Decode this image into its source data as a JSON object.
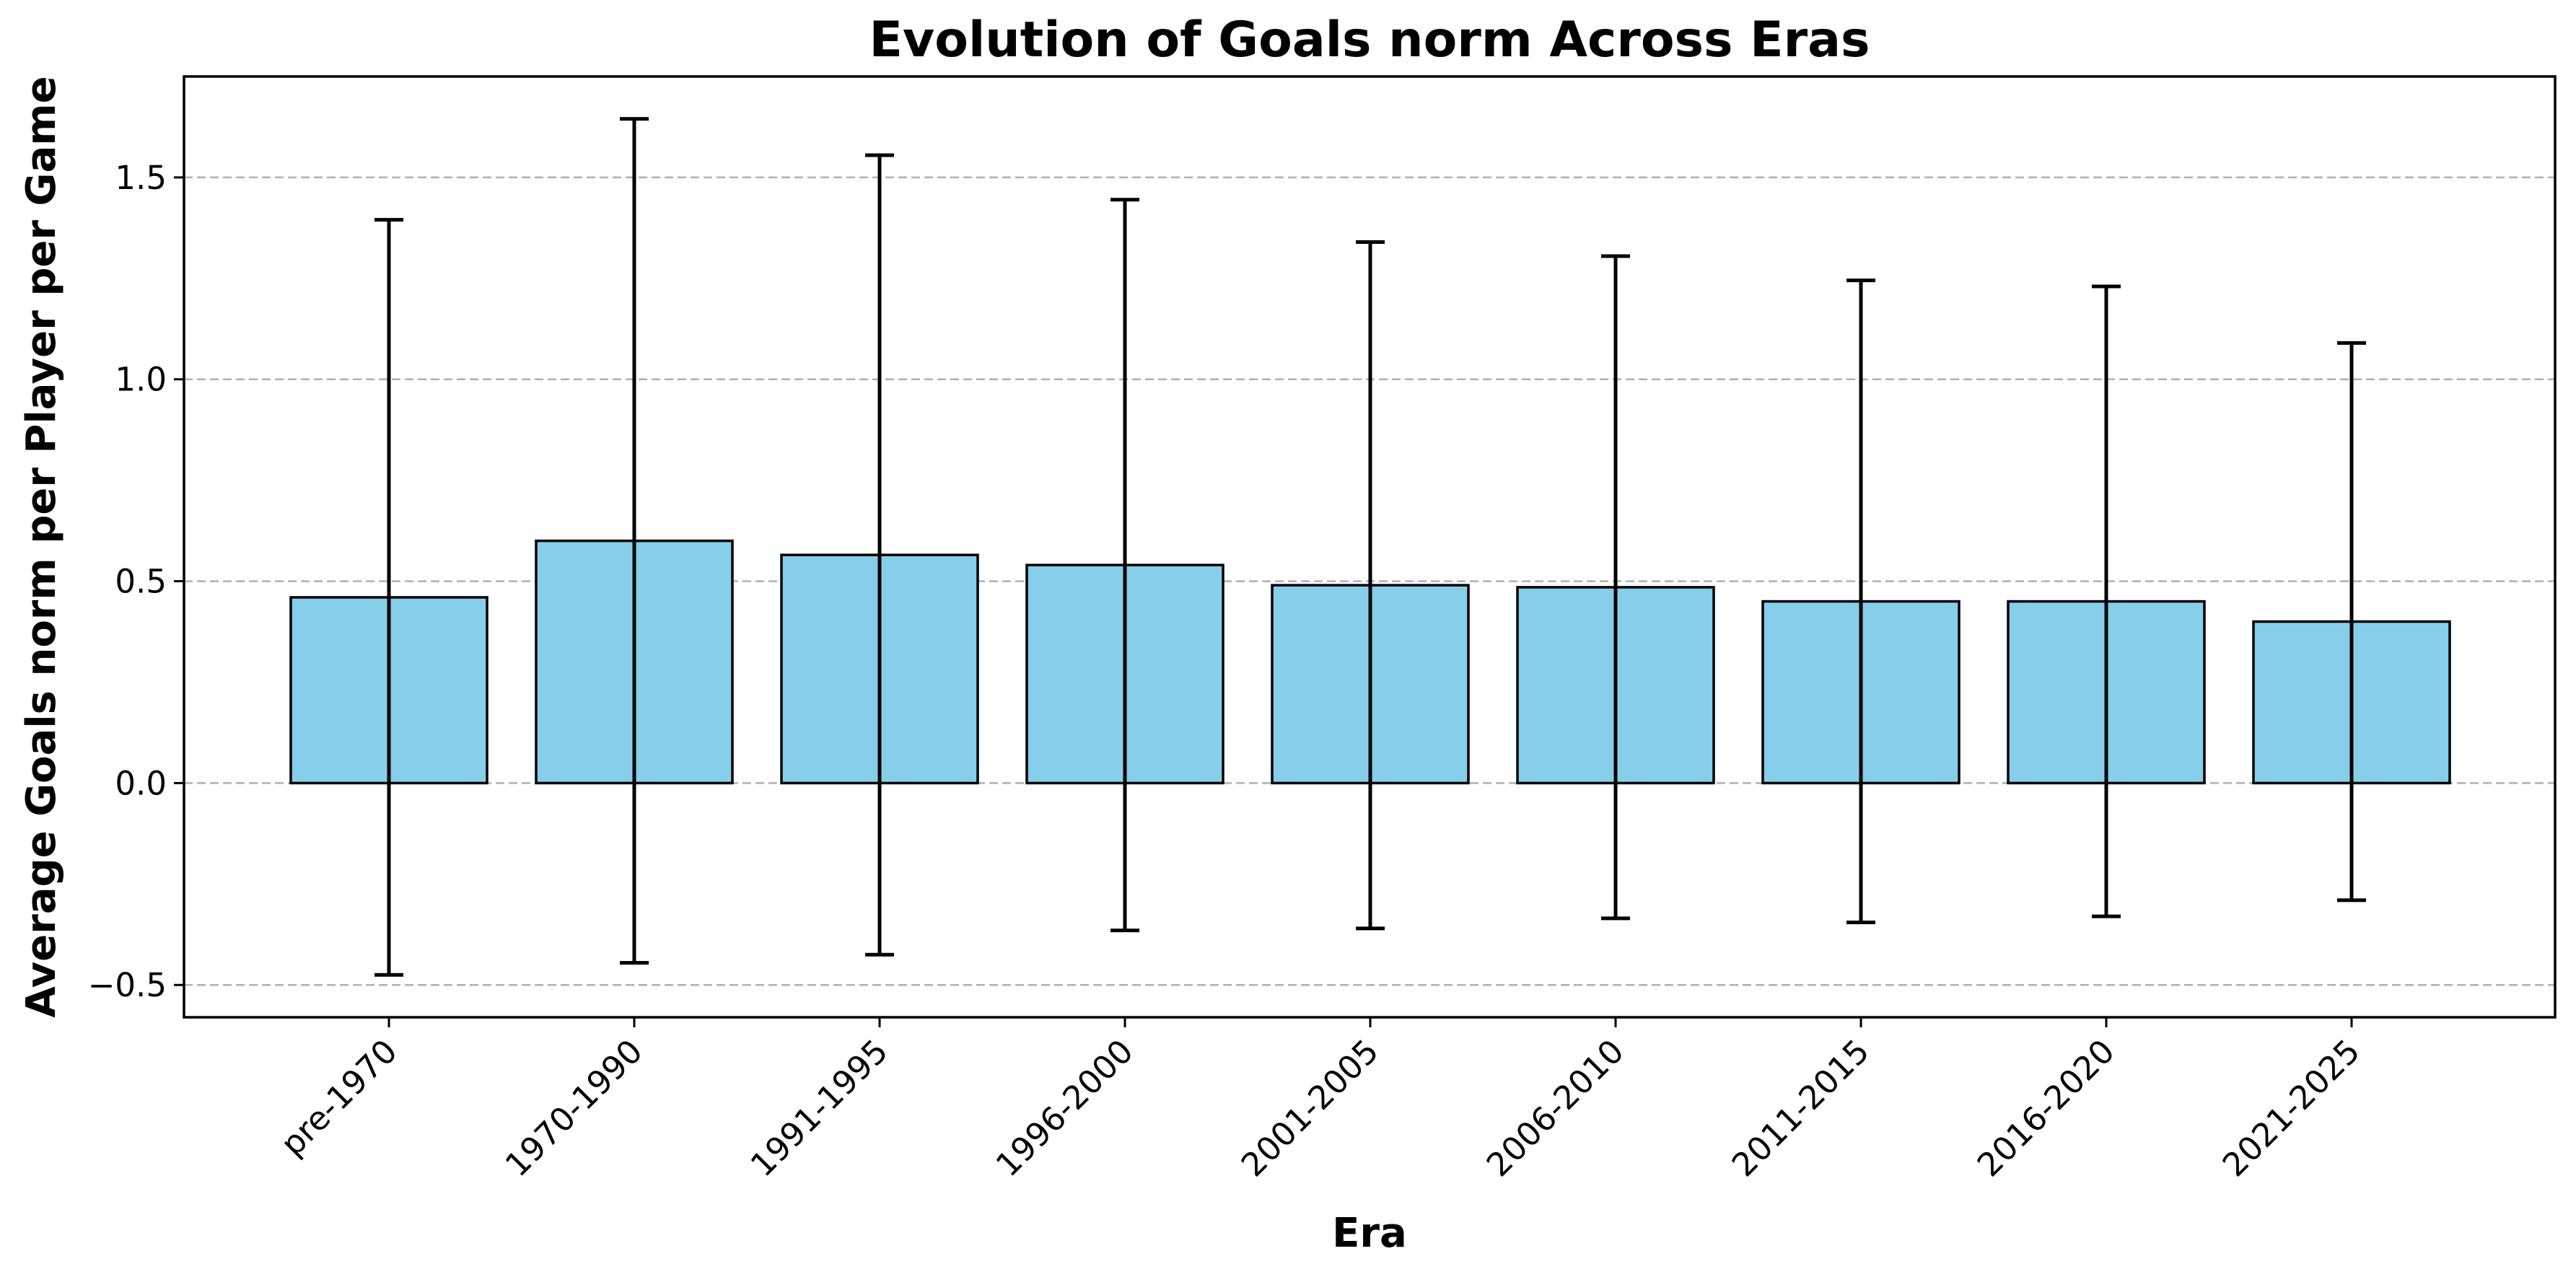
{
  "chart_data": {
    "type": "bar",
    "title": "Evolution of Goals norm Across Eras",
    "xlabel": "Era",
    "ylabel": "Average Goals norm per Player per Game",
    "categories": [
      "pre-1970",
      "1970-1990",
      "1991-1995",
      "1996-2000",
      "2001-2005",
      "2006-2010",
      "2011-2015",
      "2016-2020",
      "2021-2025"
    ],
    "values": [
      0.46,
      0.6,
      0.565,
      0.54,
      0.49,
      0.485,
      0.45,
      0.45,
      0.4
    ],
    "error": [
      0.935,
      1.045,
      0.99,
      0.905,
      0.85,
      0.82,
      0.795,
      0.78,
      0.69
    ],
    "ylim": [
      -0.58,
      1.75
    ],
    "yticks": [
      -0.5,
      0.0,
      0.5,
      1.0,
      1.5
    ],
    "ytick_labels": [
      "−0.5",
      "0.0",
      "0.5",
      "1.0",
      "1.5"
    ],
    "grid": "y dashed",
    "bar_color": "#87CEEB",
    "edge_color": "#000000",
    "error_color": "#000000"
  }
}
